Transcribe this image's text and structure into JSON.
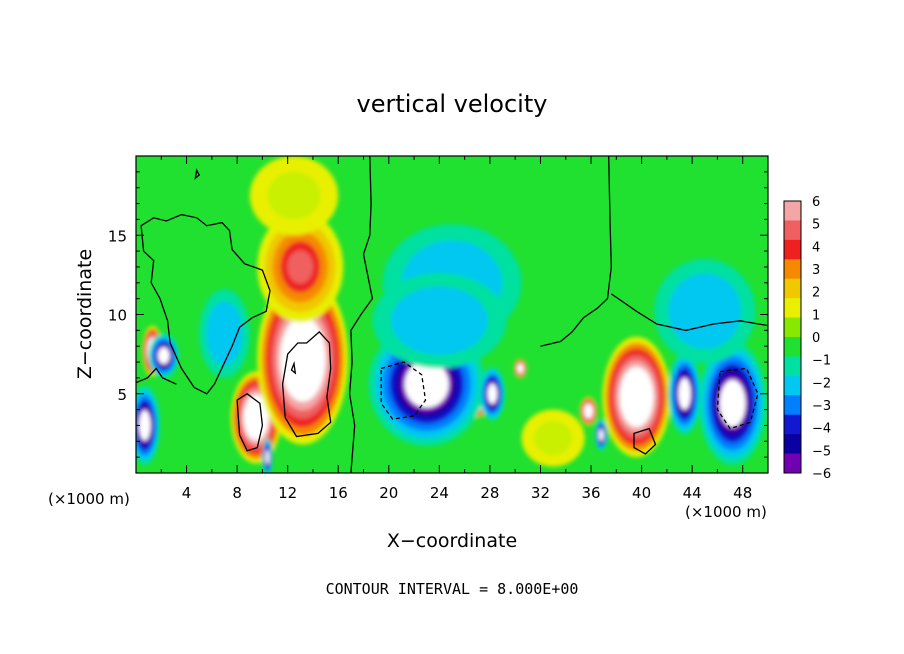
{
  "chart_data": {
    "type": "heatmap",
    "title": "vertical velocity",
    "xlabel": "X−coordinate",
    "ylabel": "Z−coordinate",
    "x_unit": "(×1000 m)",
    "y_unit": "(×1000 m)",
    "xlim": [
      0,
      50
    ],
    "ylim": [
      0,
      20
    ],
    "x_ticks": [
      "4",
      "8",
      "12",
      "16",
      "20",
      "24",
      "28",
      "32",
      "36",
      "40",
      "44",
      "48"
    ],
    "y_ticks": [
      "5",
      "10",
      "15"
    ],
    "colorbar": {
      "min": -6,
      "max": 6,
      "labels": [
        "6",
        "5",
        "4",
        "3",
        "2",
        "1",
        "0",
        "−1",
        "−2",
        "−3",
        "−4",
        "−5",
        "−6"
      ],
      "colors": [
        "#f4a6a6",
        "#f06060",
        "#ee2020",
        "#f58a00",
        "#f0c800",
        "#e8f000",
        "#88e800",
        "#20e030",
        "#00e0a0",
        "#00c8f0",
        "#0080ff",
        "#1018d0",
        "#0a00a0",
        "#7000b0"
      ]
    },
    "footer": "CONTOUR INTERVAL = 8.000E+00",
    "features": [
      {
        "kind": "updraft",
        "x": 9.5,
        "z": 3.5,
        "rx": 2.0,
        "rz": 2.9
      },
      {
        "kind": "updraft",
        "x": 13.2,
        "z": 7.2,
        "rx": 3.6,
        "rz": 5.4
      },
      {
        "kind": "updraft_plume",
        "x": 13.0,
        "z": 13.0,
        "rx": 3.4,
        "rz": 3.5
      },
      {
        "kind": "updraft",
        "x": 1.3,
        "z": 7.7,
        "rx": 0.8,
        "rz": 1.6
      },
      {
        "kind": "updraft",
        "x": 30.4,
        "z": 6.6,
        "rx": 0.5,
        "rz": 0.6
      },
      {
        "kind": "updraft",
        "x": 39.6,
        "z": 4.8,
        "rx": 2.7,
        "rz": 3.8
      },
      {
        "kind": "updraft",
        "x": 35.8,
        "z": 3.9,
        "rx": 0.7,
        "rz": 0.9
      },
      {
        "kind": "updraft",
        "x": 27.0,
        "z": 4.3,
        "rx": 0.8,
        "rz": 0.8
      },
      {
        "kind": "downdraft",
        "x": 23.0,
        "z": 5.6,
        "rx": 4.6,
        "rz": 3.9
      },
      {
        "kind": "downdraft",
        "x": 28.2,
        "z": 5.0,
        "rx": 1.0,
        "rz": 1.7
      },
      {
        "kind": "downdraft",
        "x": 47.2,
        "z": 4.4,
        "rx": 2.7,
        "rz": 3.9
      },
      {
        "kind": "downdraft",
        "x": 43.4,
        "z": 5.0,
        "rx": 1.3,
        "rz": 2.6
      },
      {
        "kind": "downdraft",
        "x": 0.7,
        "z": 3.0,
        "rx": 1.2,
        "rz": 2.5
      },
      {
        "kind": "downdraft",
        "x": 2.2,
        "z": 7.4,
        "rx": 1.2,
        "rz": 1.4
      },
      {
        "kind": "downdraft",
        "x": 36.8,
        "z": 2.4,
        "rx": 0.5,
        "rz": 1.0
      },
      {
        "kind": "downdraft",
        "x": 10.4,
        "z": 1.0,
        "rx": 0.4,
        "rz": 1.2
      },
      {
        "kind": "weak_down",
        "x": 25.0,
        "z": 12.0,
        "rx": 5.5,
        "rz": 3.7
      },
      {
        "kind": "weak_down",
        "x": 24.0,
        "z": 9.6,
        "rx": 5.3,
        "rz": 3.0
      },
      {
        "kind": "weak_down",
        "x": 7.0,
        "z": 8.8,
        "rx": 2.0,
        "rz": 2.8
      },
      {
        "kind": "weak_down",
        "x": 45.0,
        "z": 10.2,
        "rx": 4.0,
        "rz": 3.3
      },
      {
        "kind": "weak_up",
        "x": 12.5,
        "z": 17.5,
        "rx": 3.5,
        "rz": 2.5
      },
      {
        "kind": "weak_up",
        "x": 33.0,
        "z": 2.2,
        "rx": 2.5,
        "rz": 1.8
      }
    ]
  }
}
